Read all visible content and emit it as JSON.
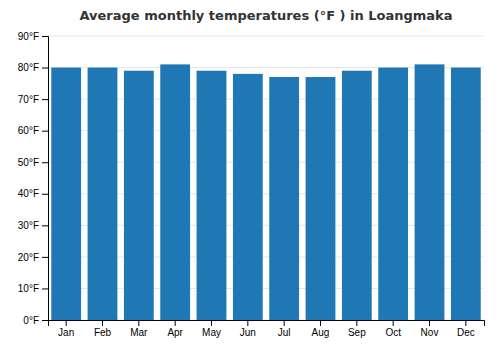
{
  "chart_data": {
    "type": "bar",
    "title": "Average monthly temperatures (°F ) in Loangmaka",
    "categories": [
      "Jan",
      "Feb",
      "Mar",
      "Apr",
      "May",
      "Jun",
      "Jul",
      "Aug",
      "Sep",
      "Oct",
      "Nov",
      "Dec"
    ],
    "values": [
      80,
      80,
      79,
      81,
      79,
      78,
      77,
      77,
      79,
      80,
      81,
      80
    ],
    "ylim": [
      0,
      90
    ],
    "yticks": [
      {
        "value": 0,
        "label": "0°F"
      },
      {
        "value": 10,
        "label": "10°F"
      },
      {
        "value": 20,
        "label": "20°F"
      },
      {
        "value": 30,
        "label": "30°F"
      },
      {
        "value": 40,
        "label": "40°F"
      },
      {
        "value": 50,
        "label": "50°F"
      },
      {
        "value": 60,
        "label": "60°F"
      },
      {
        "value": 70,
        "label": "70°F"
      },
      {
        "value": 80,
        "label": "80°F"
      },
      {
        "value": 90,
        "label": "90°F"
      }
    ],
    "grid": true
  }
}
